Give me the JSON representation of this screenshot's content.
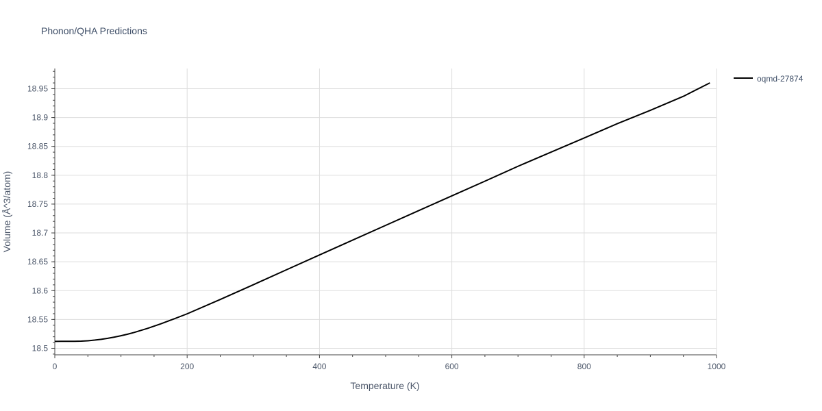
{
  "chart_data": {
    "type": "line",
    "title": "Phonon/QHA Predictions",
    "xlabel": "Temperature (K)",
    "ylabel": "Volume (Å^3/atom)",
    "xlim": [
      0,
      1000
    ],
    "ylim": [
      18.4887,
      18.985
    ],
    "x_ticks": [
      0,
      200,
      400,
      600,
      800,
      1000
    ],
    "x_tick_labels": [
      "0",
      "200",
      "400",
      "600",
      "800",
      "1000"
    ],
    "y_ticks": [
      18.5,
      18.55,
      18.6,
      18.65,
      18.7,
      18.75,
      18.8,
      18.85,
      18.9,
      18.95
    ],
    "y_tick_labels": [
      "18.5",
      "18.55",
      "18.6",
      "18.65",
      "18.7",
      "18.75",
      "18.8",
      "18.85",
      "18.9",
      "18.95"
    ],
    "grid": true,
    "legend_position": "top-right",
    "series": [
      {
        "name": "oqmd-27874",
        "color": "#000000",
        "x": [
          0,
          10,
          20,
          30,
          40,
          50,
          60,
          70,
          80,
          90,
          100,
          110,
          120,
          140,
          160,
          180,
          200,
          250,
          300,
          350,
          400,
          450,
          500,
          550,
          600,
          650,
          700,
          750,
          800,
          850,
          900,
          950,
          990
        ],
        "y": [
          18.512,
          18.5121,
          18.5122,
          18.5122,
          18.5124,
          18.5131,
          18.5142,
          18.5156,
          18.5173,
          18.5194,
          18.5218,
          18.5245,
          18.5275,
          18.5345,
          18.5423,
          18.5509,
          18.5598,
          18.5847,
          18.6102,
          18.6361,
          18.6618,
          18.6875,
          18.7131,
          18.7387,
          18.7642,
          18.7897,
          18.8155,
          18.8401,
          18.8646,
          18.8893,
          18.9125,
          18.9368,
          18.9601
        ]
      }
    ]
  }
}
